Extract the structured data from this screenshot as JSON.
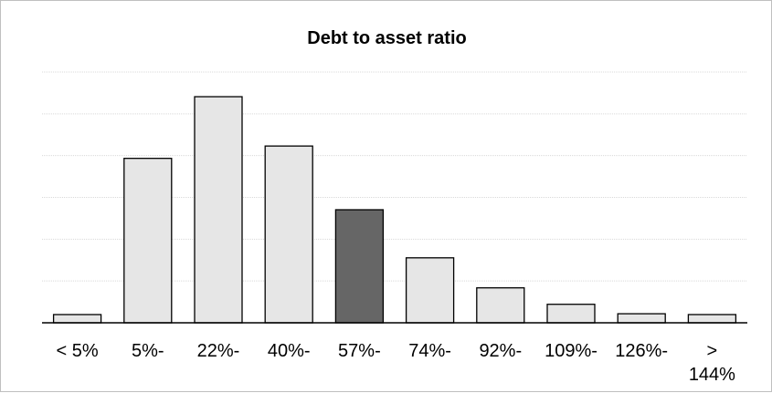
{
  "chart_data": {
    "type": "bar",
    "title": "Debt to asset ratio",
    "xlabel": "",
    "ylabel": "",
    "categories": [
      "< 5%",
      "5%-",
      "22%-",
      "40%-",
      "57%-",
      "74%-",
      "92%-",
      "109%-",
      "126%-",
      "> 144%"
    ],
    "values": [
      2,
      40,
      55,
      43,
      27.5,
      15.8,
      8.5,
      4.5,
      2.2,
      2
    ],
    "highlight_index": 4,
    "ylim": [
      0,
      61
    ],
    "grid": true,
    "y_axis_visible": false,
    "legend": "none",
    "colors": {
      "bar_fill": "#e6e6e6",
      "bar_highlight": "#666666",
      "bar_stroke": "#000000",
      "grid": "#d9d9d9",
      "axis": "#000000"
    }
  }
}
